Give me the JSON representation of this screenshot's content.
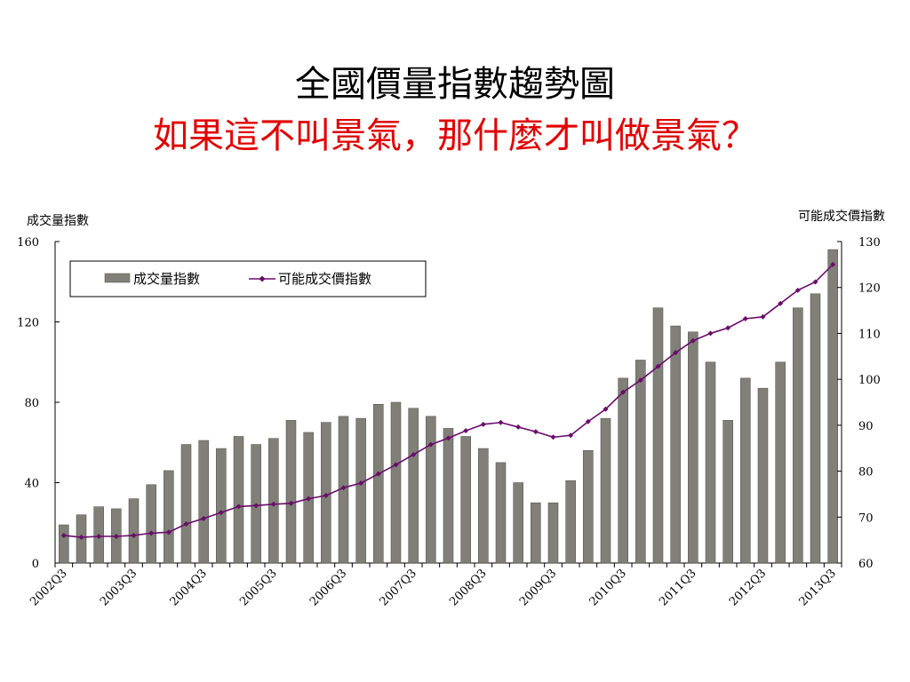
{
  "slide": {
    "title": "全國價量指數趨勢圖",
    "subtitle": "如果這不叫景氣，那什麼才叫做景氣？",
    "subtitle_color": "#e00000"
  },
  "chart_data": {
    "type": "bar",
    "left_axis_label": "成交量指數",
    "right_axis_label": "可能成交價指數",
    "left_ylim": [
      0,
      160
    ],
    "left_ticks": [
      0,
      40,
      80,
      120,
      160
    ],
    "right_ylim": [
      60,
      130
    ],
    "right_ticks": [
      60,
      70,
      80,
      90,
      100,
      110,
      120,
      130
    ],
    "x_tick_labels": [
      "2002Q3",
      "2003Q3",
      "2004Q3",
      "2005Q3",
      "2006Q3",
      "2007Q3",
      "2008Q3",
      "2009Q3",
      "2010Q3",
      "2011Q3",
      "2012Q3",
      "2013Q3"
    ],
    "categories": [
      "2002Q3",
      "2002Q4",
      "2003Q1",
      "2003Q2",
      "2003Q3",
      "2003Q4",
      "2004Q1",
      "2004Q2",
      "2004Q3",
      "2004Q4",
      "2005Q1",
      "2005Q2",
      "2005Q3",
      "2005Q4",
      "2006Q1",
      "2006Q2",
      "2006Q3",
      "2006Q4",
      "2007Q1",
      "2007Q2",
      "2007Q3",
      "2007Q4",
      "2008Q1",
      "2008Q2",
      "2008Q3",
      "2008Q4",
      "2009Q1",
      "2009Q2",
      "2009Q3",
      "2009Q4",
      "2010Q1",
      "2010Q2",
      "2010Q3",
      "2010Q4",
      "2011Q1",
      "2011Q2",
      "2011Q3",
      "2011Q4",
      "2012Q1",
      "2012Q2",
      "2012Q3",
      "2012Q4",
      "2013Q1",
      "2013Q2",
      "2013Q3"
    ],
    "series": [
      {
        "name": "成交量指數",
        "type": "bar",
        "axis": "left",
        "color": "#808078",
        "values": [
          19,
          24,
          28,
          27,
          32,
          39,
          46,
          59,
          61,
          57,
          63,
          59,
          62,
          71,
          65,
          70,
          73,
          72,
          79,
          80,
          77,
          73,
          67,
          63,
          57,
          50,
          40,
          30,
          30,
          41,
          56,
          72,
          92,
          101,
          127,
          118,
          115,
          100,
          71,
          92,
          87,
          100,
          127,
          134,
          156
        ]
      },
      {
        "name": "可能成交價指數",
        "type": "line",
        "axis": "right",
        "color": "#6a0d6a",
        "values": [
          66,
          65.6,
          65.8,
          65.8,
          66,
          66.5,
          66.7,
          68.5,
          69.7,
          71,
          72.3,
          72.5,
          72.8,
          73,
          74,
          74.7,
          76.4,
          77.4,
          79.4,
          81.4,
          83.6,
          85.8,
          87.2,
          88.8,
          90.2,
          90.6,
          89.6,
          88.6,
          87.4,
          87.8,
          90.8,
          93.5,
          97.2,
          99.8,
          102.8,
          105.8,
          108.4,
          110,
          111.2,
          113.2,
          113.6,
          116.5,
          119.4,
          121.2,
          125
        ]
      }
    ],
    "legend": {
      "position": "top-left",
      "framed": true
    },
    "grid": false
  }
}
